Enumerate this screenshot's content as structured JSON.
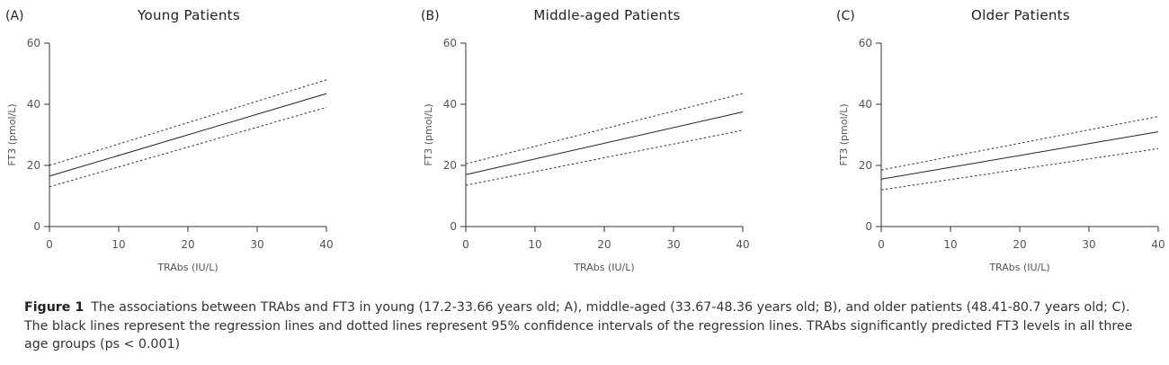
{
  "chart_data": [
    {
      "type": "line",
      "panel": "(A)",
      "title": "Young Patients",
      "xlabel": "TRAbs (IU/L)",
      "ylabel": "FT3 (pmol/L)",
      "xlim": [
        0,
        40
      ],
      "ylim": [
        0,
        60
      ],
      "xticks": [
        0,
        10,
        20,
        30,
        40
      ],
      "yticks": [
        0,
        20,
        40,
        60
      ],
      "grid": false,
      "x": [
        0,
        40
      ],
      "series": [
        {
          "role": "regression",
          "values": [
            16.5,
            43.5
          ]
        },
        {
          "role": "ci-upper",
          "values": [
            20,
            48
          ]
        },
        {
          "role": "ci-lower",
          "values": [
            13,
            39
          ]
        }
      ]
    },
    {
      "type": "line",
      "panel": "(B)",
      "title": "Middle-aged Patients",
      "xlabel": "TRAbs (IU/L)",
      "ylabel": "FT3 (pmol/L)",
      "xlim": [
        0,
        40
      ],
      "ylim": [
        0,
        60
      ],
      "xticks": [
        0,
        10,
        20,
        30,
        40
      ],
      "yticks": [
        0,
        20,
        40,
        60
      ],
      "grid": false,
      "x": [
        0,
        40
      ],
      "series": [
        {
          "role": "regression",
          "values": [
            17,
            37.5
          ]
        },
        {
          "role": "ci-upper",
          "values": [
            20.5,
            43.5
          ]
        },
        {
          "role": "ci-lower",
          "values": [
            13.5,
            31.5
          ]
        }
      ]
    },
    {
      "type": "line",
      "panel": "(C)",
      "title": "Older Patients",
      "xlabel": "TRAbs (IU/L)",
      "ylabel": "FT3 (pmol/L)",
      "xlim": [
        0,
        40
      ],
      "ylim": [
        0,
        60
      ],
      "xticks": [
        0,
        10,
        20,
        30,
        40
      ],
      "yticks": [
        0,
        20,
        40,
        60
      ],
      "grid": false,
      "x": [
        0,
        40
      ],
      "series": [
        {
          "role": "regression",
          "values": [
            15.5,
            31
          ]
        },
        {
          "role": "ci-upper",
          "values": [
            18.5,
            36
          ]
        },
        {
          "role": "ci-lower",
          "values": [
            12,
            25.5
          ]
        }
      ]
    }
  ],
  "caption": {
    "label": "Figure 1",
    "text": "The associations between TRAbs and FT3 in young (17.2-33.66 years old; A), middle-aged (33.67-48.36 years old; B), and older patients (48.41-80.7 years old; C). The black lines represent the regression lines and dotted lines represent 95% confidence intervals of the regression lines. TRAbs significantly predicted FT3 levels in all three age groups (ps < 0.001)"
  }
}
